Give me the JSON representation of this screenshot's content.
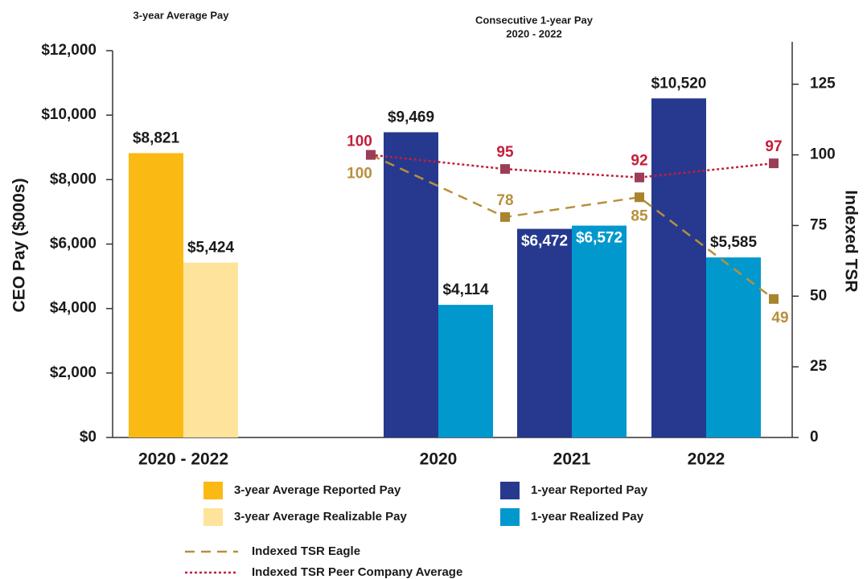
{
  "chart_data": {
    "type": "bar",
    "headers": [
      "3-year Average Pay",
      "Consecutive 1-year Pay",
      "2020 - 2022"
    ],
    "ylabel": "CEO Pay ($000s)",
    "y2label": "Indexed TSR",
    "categories": [
      "2020 - 2022",
      "2020",
      "2021",
      "2022"
    ],
    "ylim": [
      0,
      12000
    ],
    "yticks": [
      {
        "value": 0,
        "label": "$0"
      },
      {
        "value": 2000,
        "label": "$2,000"
      },
      {
        "value": 4000,
        "label": "$4,000"
      },
      {
        "value": 6000,
        "label": "$6,000"
      },
      {
        "value": 8000,
        "label": "$8,000"
      },
      {
        "value": 10000,
        "label": "$10,000"
      },
      {
        "value": 12000,
        "label": "$12,000"
      }
    ],
    "y2lim": [
      0,
      140
    ],
    "y2ticks": [
      0,
      25,
      50,
      75,
      100,
      125
    ],
    "series": [
      {
        "name": "3-year Average Reported Pay",
        "color": "#fbb913",
        "values": [
          8821,
          null,
          null,
          null
        ],
        "value_labels": [
          "$8,821",
          null,
          null,
          null
        ]
      },
      {
        "name": "3-year Average Realizable Pay",
        "color": "#fde49a",
        "values": [
          5424,
          null,
          null,
          null
        ],
        "value_labels": [
          "$5,424",
          null,
          null,
          null
        ]
      },
      {
        "name": "1-year Reported Pay",
        "color": "#26398e",
        "values": [
          null,
          9469,
          6472,
          10520
        ],
        "value_labels": [
          null,
          "$9,469",
          "$6,472",
          "$10,520"
        ]
      },
      {
        "name": "1-year Realized Pay",
        "color": "#0098cd",
        "values": [
          null,
          4114,
          6572,
          5585
        ],
        "value_labels": [
          null,
          "$4,114",
          "$6,572",
          "$5,585"
        ]
      }
    ],
    "lines": [
      {
        "name": "Indexed TSR Eagle",
        "color": "#b8903a",
        "label_color": "#b8903a",
        "marker_color": "#a8842e",
        "dash": "12 8",
        "axis": "y2",
        "values": [
          100,
          78,
          85,
          49
        ]
      },
      {
        "name": "Indexed TSR Peer Company Average",
        "color": "#c41e3a",
        "label_color": "#c41e3a",
        "marker_color": "#9b3e55",
        "dash": "3 3",
        "axis": "y2",
        "values": [
          100,
          95,
          92,
          97
        ]
      }
    ]
  }
}
